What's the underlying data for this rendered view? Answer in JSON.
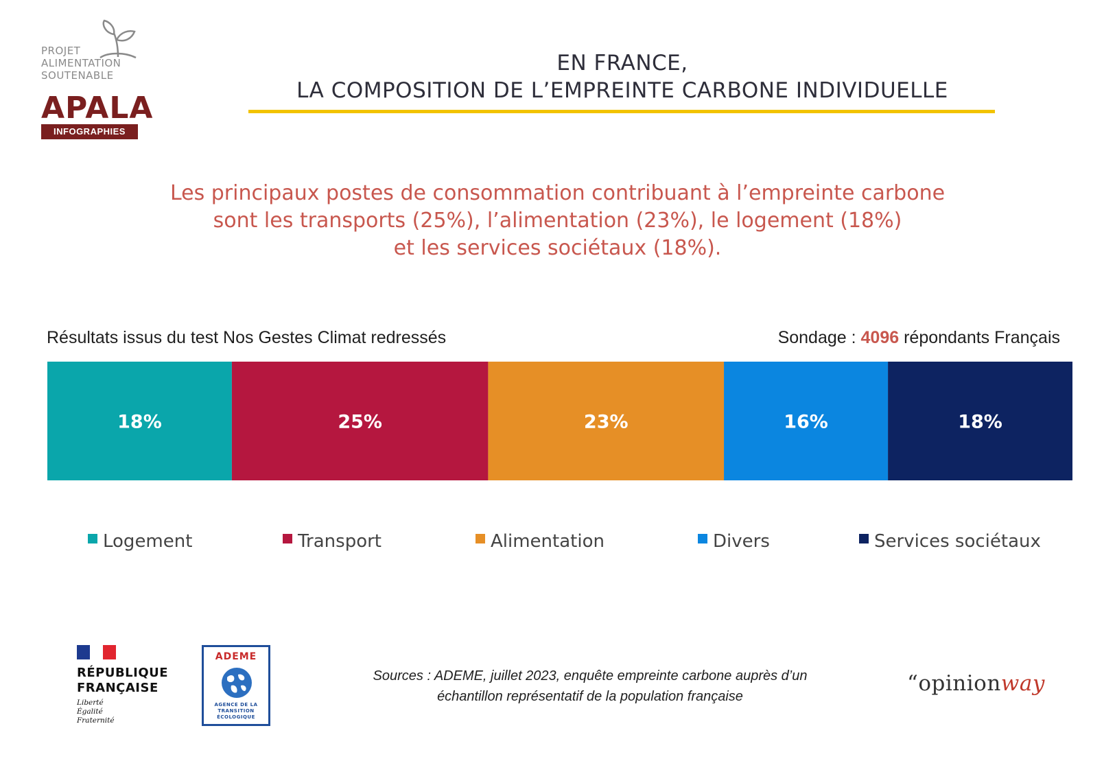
{
  "logo": {
    "lines": [
      "PROJET",
      "ALIMENTATION",
      "SOUTENABLE"
    ],
    "wordmark": "APALA",
    "band": "INFOGRAPHIES"
  },
  "title": {
    "line1": "EN FRANCE,",
    "line2": "LA COMPOSITION DE L’EMPREINTE CARBONE INDIVIDUELLE"
  },
  "subtitle": {
    "line1": "Les principaux postes de consommation contribuant à l’empreinte carbone",
    "line2": "sont les transports (25%), l’alimentation (23%), le logement (18%)",
    "line3": "et les services sociétaux (18%)."
  },
  "captions": {
    "left": "Résultats issus du test Nos Gestes Climat redressés",
    "right_prefix": "Sondage : ",
    "right_number": "4096",
    "right_suffix": " répondants Français"
  },
  "chart_data": {
    "type": "bar",
    "orientation": "horizontal",
    "stacked": true,
    "unit": "%",
    "categories": [
      "Logement",
      "Transport",
      "Alimentation",
      "Divers",
      "Services sociétaux"
    ],
    "values": [
      18,
      25,
      23,
      16,
      18
    ],
    "labels": [
      "18%",
      "25%",
      "23%",
      "16%",
      "18%"
    ],
    "colors": [
      "#0aa6ab",
      "#b5173f",
      "#e68f26",
      "#0b86e0",
      "#0d2361"
    ],
    "legend_position": "bottom",
    "grid": false
  },
  "footer": {
    "republique": [
      "RÉPUBLIQUE",
      "FRANÇAISE"
    ],
    "motto": [
      "Liberté",
      "Égalité",
      "Fraternité"
    ],
    "ademe_title": "ADEME",
    "ademe_sub": [
      "AGENCE DE LA",
      "TRANSITION",
      "ÉCOLOGIQUE"
    ],
    "sources_line1": "Sources : ADEME, juillet 2023, enquête empreinte carbone auprès d’un",
    "sources_line2": "échantillon représentatif de la population française",
    "opinionway_quote": "“",
    "opinionway_opinion": "opinion",
    "opinionway_way": "way"
  }
}
